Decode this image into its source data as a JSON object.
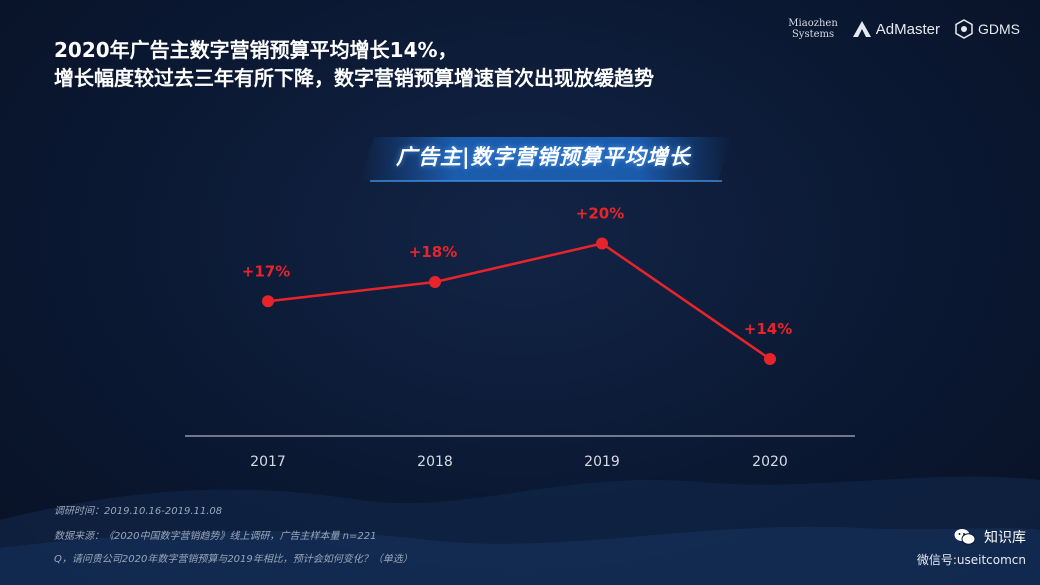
{
  "headline": {
    "line1": "2020年广告主数字营销预算平均增长14%，",
    "line2": "增长幅度较过去三年有所下降，数字营销预算增速首次出现放缓趋势"
  },
  "brands": {
    "miaozhen_line1": "Miaozhen",
    "miaozhen_line2": "Systems",
    "admaster": "AdMaster",
    "gdms": "GDMS"
  },
  "chart_data": {
    "type": "line",
    "title": "广告主|数字营销预算平均增长",
    "categories": [
      "2017",
      "2018",
      "2019",
      "2020"
    ],
    "values": [
      17,
      18,
      20,
      14
    ],
    "data_labels": [
      "+17%",
      "+18%",
      "+20%",
      "+14%"
    ],
    "ylim": [
      10,
      22
    ],
    "grid": false,
    "line_color": "#e8242b",
    "label_color": "#e8242b"
  },
  "footnotes": {
    "survey_time": "调研时间：2019.10.16-2019.11.08",
    "source": "数据来源：《2020中国数字营销趋势》线上调研，广告主样本量 n=221",
    "question": "Q，请问贵公司2020年数字营销预算与2019年相比，预计会如何变化？（单选）"
  },
  "watermark": {
    "name": "知识库",
    "account": "微信号:useitcomcn"
  }
}
